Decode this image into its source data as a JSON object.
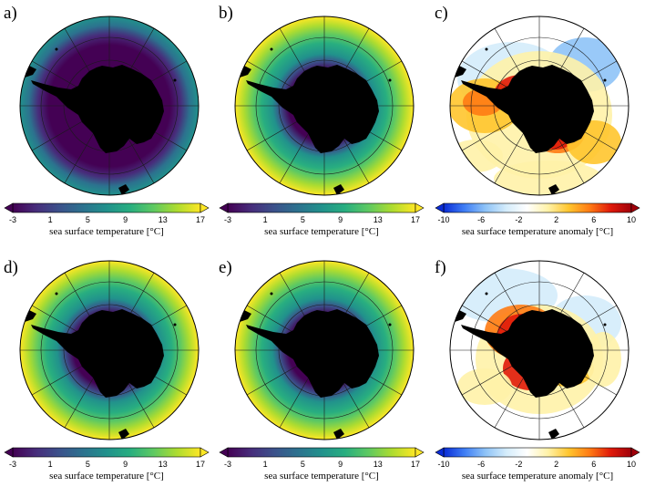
{
  "figure": {
    "panels": [
      {
        "id": "a",
        "label": "a)",
        "field": "viridis",
        "pattern": "uniform-low"
      },
      {
        "id": "b",
        "label": "b)",
        "field": "viridis",
        "pattern": "zonal"
      },
      {
        "id": "c",
        "label": "c)",
        "field": "anomaly",
        "pattern": "anom1"
      },
      {
        "id": "d",
        "label": "d)",
        "field": "viridis",
        "pattern": "zonal"
      },
      {
        "id": "e",
        "label": "e)",
        "field": "viridis",
        "pattern": "zonal"
      },
      {
        "id": "f",
        "label": "f)",
        "field": "anomaly",
        "pattern": "anom2"
      }
    ],
    "colorbars": {
      "sst": {
        "title": "sea surface temperature [°C]",
        "ticks": [
          "-3",
          "1",
          "5",
          "9",
          "13",
          "17"
        ],
        "range": [
          -3,
          17
        ]
      },
      "anomaly": {
        "title": "sea surface temperature anomaly [°C]",
        "ticks": [
          "-10",
          "-6",
          "-2",
          "2",
          "6",
          "10"
        ],
        "range": [
          -10,
          10
        ]
      }
    },
    "colors": {
      "land": "#000000",
      "grid": "#1a1a1a",
      "viridis": [
        "#440154",
        "#472d7b",
        "#3b528b",
        "#2c728e",
        "#21918c",
        "#28ae80",
        "#5ec962",
        "#addc30",
        "#fde725"
      ],
      "anomaly": [
        "#0a2cd6",
        "#3f7ef5",
        "#8ec3f7",
        "#d4ecfb",
        "#ffffff",
        "#fff2a8",
        "#ffc52e",
        "#ff7b14",
        "#e01a0a",
        "#a0000a"
      ]
    }
  }
}
